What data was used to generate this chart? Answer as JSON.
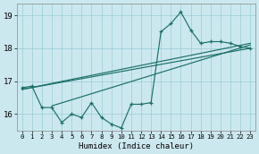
{
  "title": "",
  "xlabel": "Humidex (Indice chaleur)",
  "background_color": "#cce8ef",
  "grid_color": "#99ccd6",
  "line_color": "#1a7068",
  "xlim": [
    -0.5,
    23.5
  ],
  "ylim": [
    15.5,
    19.35
  ],
  "yticks": [
    16,
    17,
    18,
    19
  ],
  "xticks": [
    0,
    1,
    2,
    3,
    4,
    5,
    6,
    7,
    8,
    9,
    10,
    11,
    12,
    13,
    14,
    15,
    16,
    17,
    18,
    19,
    20,
    21,
    22,
    23
  ],
  "line1_x": [
    0,
    1,
    2,
    3,
    4,
    5,
    6,
    7,
    8,
    9,
    10,
    11,
    12,
    13,
    14,
    15,
    16,
    17,
    18,
    19,
    20,
    21,
    22,
    23
  ],
  "line1_y": [
    16.8,
    16.85,
    16.2,
    16.2,
    15.75,
    16.0,
    15.9,
    16.35,
    15.9,
    15.7,
    15.58,
    16.3,
    16.3,
    16.35,
    18.5,
    18.75,
    19.1,
    18.55,
    18.15,
    18.2,
    18.2,
    18.15,
    18.05,
    18.0
  ],
  "trend1_x": [
    0,
    23
  ],
  "trend1_y": [
    16.75,
    18.0
  ],
  "trend2_x": [
    0,
    23
  ],
  "trend2_y": [
    16.75,
    18.15
  ],
  "trend3_x": [
    3,
    23
  ],
  "trend3_y": [
    16.25,
    18.1
  ]
}
